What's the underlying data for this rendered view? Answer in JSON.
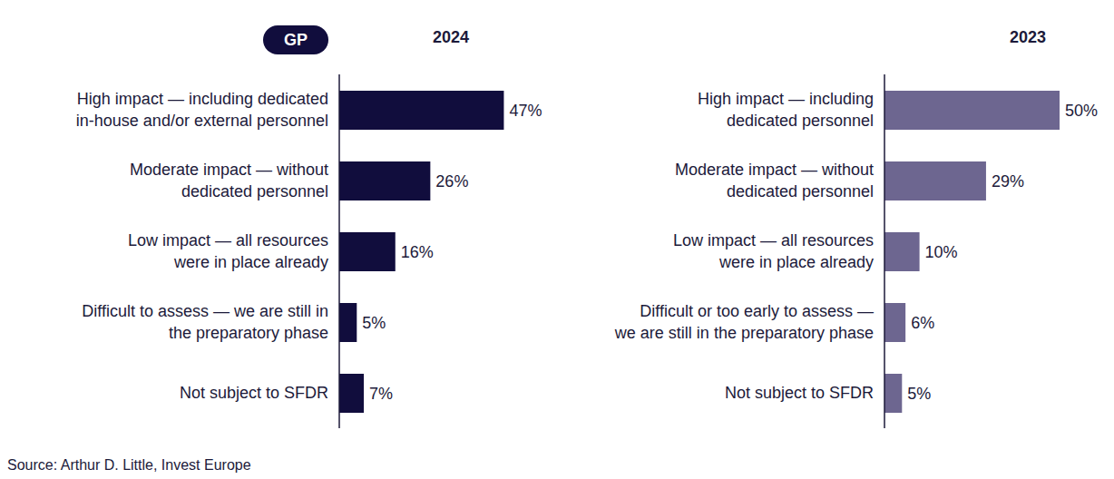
{
  "chart_data": [
    {
      "type": "bar",
      "title": "2024",
      "annotation": "GP",
      "orientation": "horizontal",
      "categories": [
        "High impact — including dedicated\nin-house and/or external personnel",
        "Moderate impact — without\ndedicated personnel",
        "Low impact — all resources\nwere in place already",
        "Difficult to assess — we are still in\nthe preparatory phase",
        "Not subject to SFDR"
      ],
      "values": [
        47,
        26,
        16,
        5,
        7
      ],
      "value_labels": [
        "47%",
        "26%",
        "16%",
        "5%",
        "7%"
      ],
      "color": "#110d3d",
      "xlim": [
        0,
        50
      ],
      "data_labels": true,
      "tick_labels": "y",
      "grid": false
    },
    {
      "type": "bar",
      "title": "2023",
      "orientation": "horizontal",
      "categories": [
        "High impact — including\ndedicated personnel",
        "Moderate impact — without\ndedicated personnel",
        "Low impact — all resources\nwere in place already",
        "Difficult or too early to assess —\nwe are still in the preparatory phase",
        "Not subject to SFDR"
      ],
      "values": [
        50,
        29,
        10,
        6,
        5
      ],
      "value_labels": [
        "50%",
        "29%",
        "10%",
        "6%",
        "5%"
      ],
      "color": "#6d6690",
      "xlim": [
        0,
        50
      ],
      "data_labels": true,
      "tick_labels": "y",
      "grid": false
    }
  ],
  "source": "Source: Arthur D. Little, Invest Europe"
}
